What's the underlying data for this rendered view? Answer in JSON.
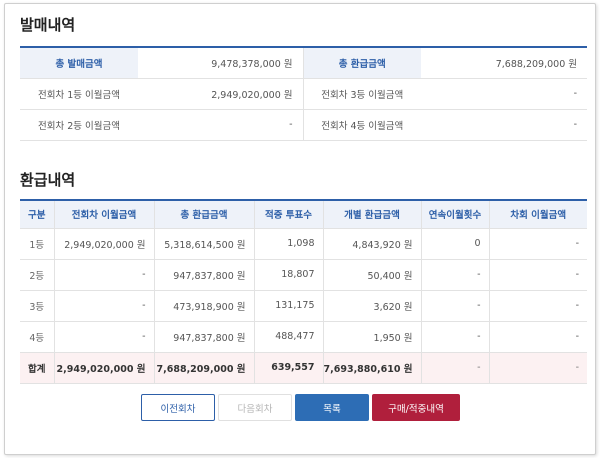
{
  "sales": {
    "title": "발매내역",
    "rows": [
      {
        "label1": "총 발매금액",
        "value1": "9,478,378,000 원",
        "label2": "총 환급금액",
        "value2": "7,688,209,000 원"
      },
      {
        "label1": "전회차 1등 이월금액",
        "value1": "2,949,020,000 원",
        "label2": "전회차 3등 이월금액",
        "value2": "-"
      },
      {
        "label1": "전회차 2등 이월금액",
        "value1": "-",
        "label2": "전회차 4등 이월금액",
        "value2": "-"
      }
    ]
  },
  "refund": {
    "title": "환급내역",
    "headers": [
      "구분",
      "전회차 이월금액",
      "총 환급금액",
      "적중 투표수",
      "개별 환급금액",
      "연속이월횟수",
      "차회 이월금액"
    ],
    "rows": [
      [
        "1등",
        "2,949,020,000 원",
        "5,318,614,500 원",
        "1,098",
        "4,843,920 원",
        "0",
        "-"
      ],
      [
        "2등",
        "-",
        "947,837,800 원",
        "18,807",
        "50,400 원",
        "-",
        "-"
      ],
      [
        "3등",
        "-",
        "473,918,900 원",
        "131,175",
        "3,620 원",
        "-",
        "-"
      ],
      [
        "4등",
        "-",
        "947,837,800 원",
        "488,477",
        "1,950 원",
        "-",
        "-"
      ]
    ],
    "total": [
      "합계",
      "2,949,020,000 원",
      "7,688,209,000 원",
      "639,557",
      "7,693,880,610 원",
      "-",
      "-"
    ]
  },
  "buttons": {
    "prev": "이전회차",
    "next": "다음회차",
    "list": "목록",
    "buy": "구매/적중내역"
  },
  "colors": {
    "accent_blue": "#2d5fa8",
    "button_blue": "#2d6db5",
    "button_red": "#b01f3c",
    "header_bg": "#eef2f9",
    "total_bg": "#fcf1f2"
  }
}
